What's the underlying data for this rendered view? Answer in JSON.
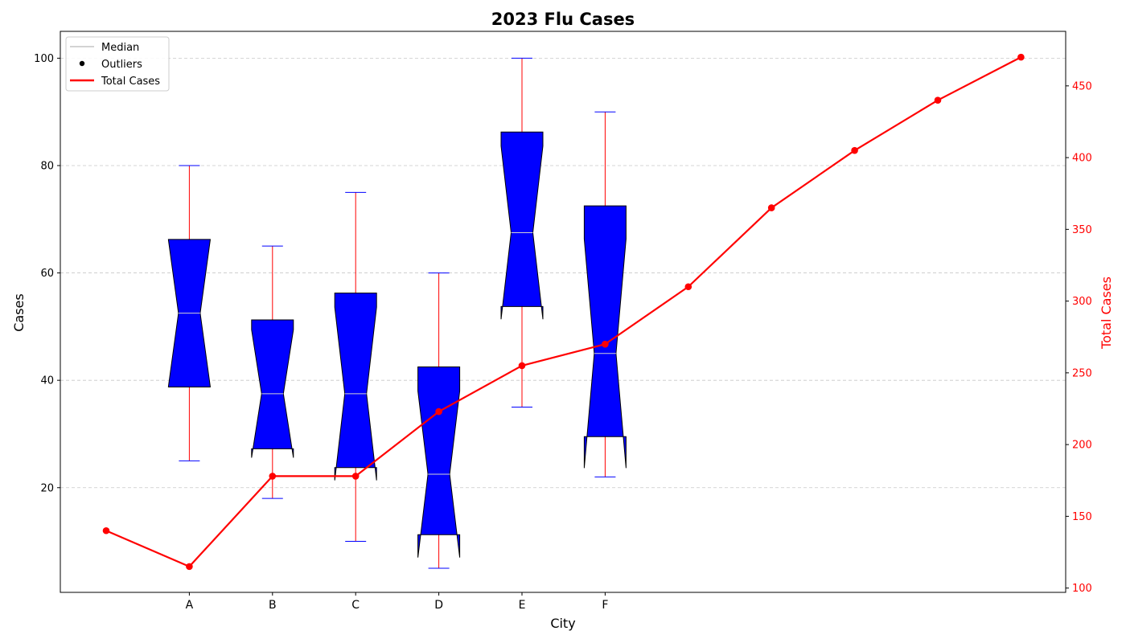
{
  "chart_data": {
    "type": "box",
    "title": "2023 Flu Cases",
    "xlabel": "City",
    "ylabel": "Cases",
    "y2label": "Total Cases",
    "categories": [
      "A",
      "B",
      "C",
      "D",
      "E",
      "F"
    ],
    "ylim": [
      0.5,
      105
    ],
    "y2lim": [
      97,
      488
    ],
    "yticks": [
      "20",
      "40",
      "60",
      "80",
      "100"
    ],
    "y2ticks": [
      "100",
      "150",
      "200",
      "250",
      "300",
      "350",
      "400",
      "450"
    ],
    "grid": true,
    "legend_position": "top-left",
    "legend": [
      {
        "label": "Median",
        "kind": "line",
        "color": "#d3d3d3"
      },
      {
        "label": "Outliers",
        "kind": "marker",
        "color": "#000000"
      },
      {
        "label": "Total Cases",
        "kind": "line",
        "color": "#ff0000"
      }
    ],
    "boxes": [
      {
        "category": "A",
        "whislo": 25,
        "q1": 38.75,
        "med": 52.5,
        "q3": 66.25,
        "whishi": 80
      },
      {
        "category": "B",
        "whislo": 18,
        "q1": 27.25,
        "med": 37.5,
        "q3": 51.25,
        "whishi": 65
      },
      {
        "category": "C",
        "whislo": 10,
        "q1": 23.75,
        "med": 37.5,
        "q3": 56.25,
        "whishi": 75
      },
      {
        "category": "D",
        "whislo": 5,
        "q1": 11.25,
        "med": 22.5,
        "q3": 42.5,
        "whishi": 60
      },
      {
        "category": "E",
        "whislo": 35,
        "q1": 53.75,
        "med": 67.5,
        "q3": 86.25,
        "whishi": 100
      },
      {
        "category": "F",
        "whislo": 22,
        "q1": 29.5,
        "med": 45,
        "q3": 72.5,
        "whishi": 90
      }
    ],
    "total_cases": {
      "name": "Total Cases",
      "x": [
        0,
        1,
        2,
        3,
        4,
        5,
        6,
        7,
        8,
        9,
        10,
        11
      ],
      "values": [
        140,
        115,
        178,
        178,
        223,
        255,
        270,
        310,
        365,
        405,
        440,
        470
      ]
    },
    "colors": {
      "box_fill": "#0000ff",
      "box_edge": "#000000",
      "whisker": "#ff0000",
      "cap": "#0000ff",
      "median": "#d3d3d3",
      "total_line": "#ff0000",
      "grid": "#c8c8c8"
    }
  }
}
